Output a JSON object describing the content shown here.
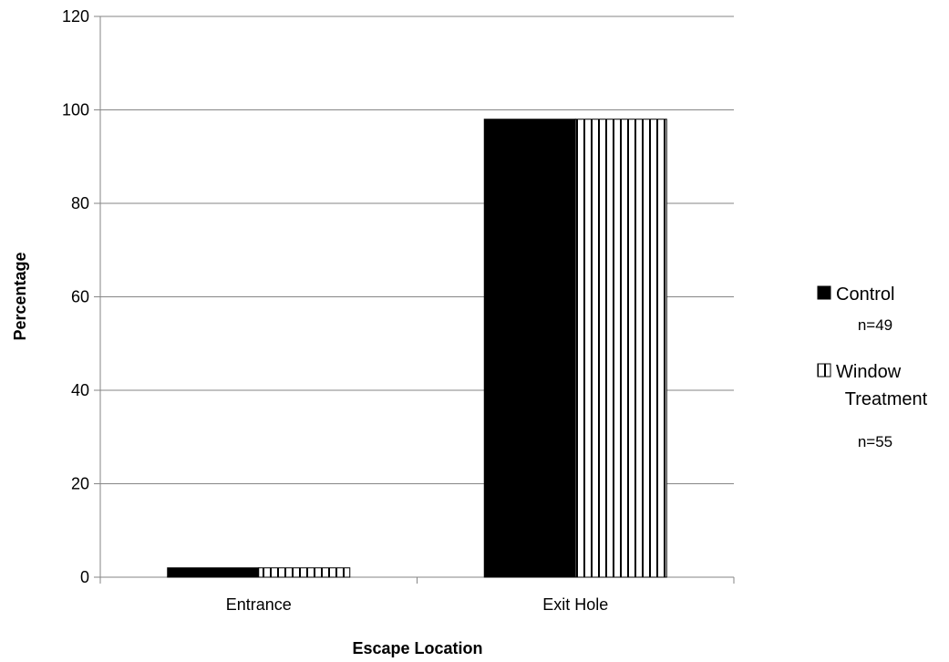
{
  "chart_data": {
    "type": "bar",
    "categories": [
      "Entrance",
      "Exit Hole"
    ],
    "series": [
      {
        "name": "Control",
        "sample_size": "n=49",
        "values": [
          2,
          98
        ],
        "color": "#000000",
        "pattern": "solid"
      },
      {
        "name": "Window Treatment",
        "sample_size": "n=55",
        "values": [
          2,
          98
        ],
        "color": "#000000",
        "pattern": "vertical-stripes"
      }
    ],
    "xlabel": "Escape Location",
    "ylabel": "Percentage",
    "ylim": [
      0,
      120
    ],
    "yticks": [
      0,
      20,
      40,
      60,
      80,
      100,
      120
    ],
    "grid": true,
    "legend_position": "right"
  }
}
